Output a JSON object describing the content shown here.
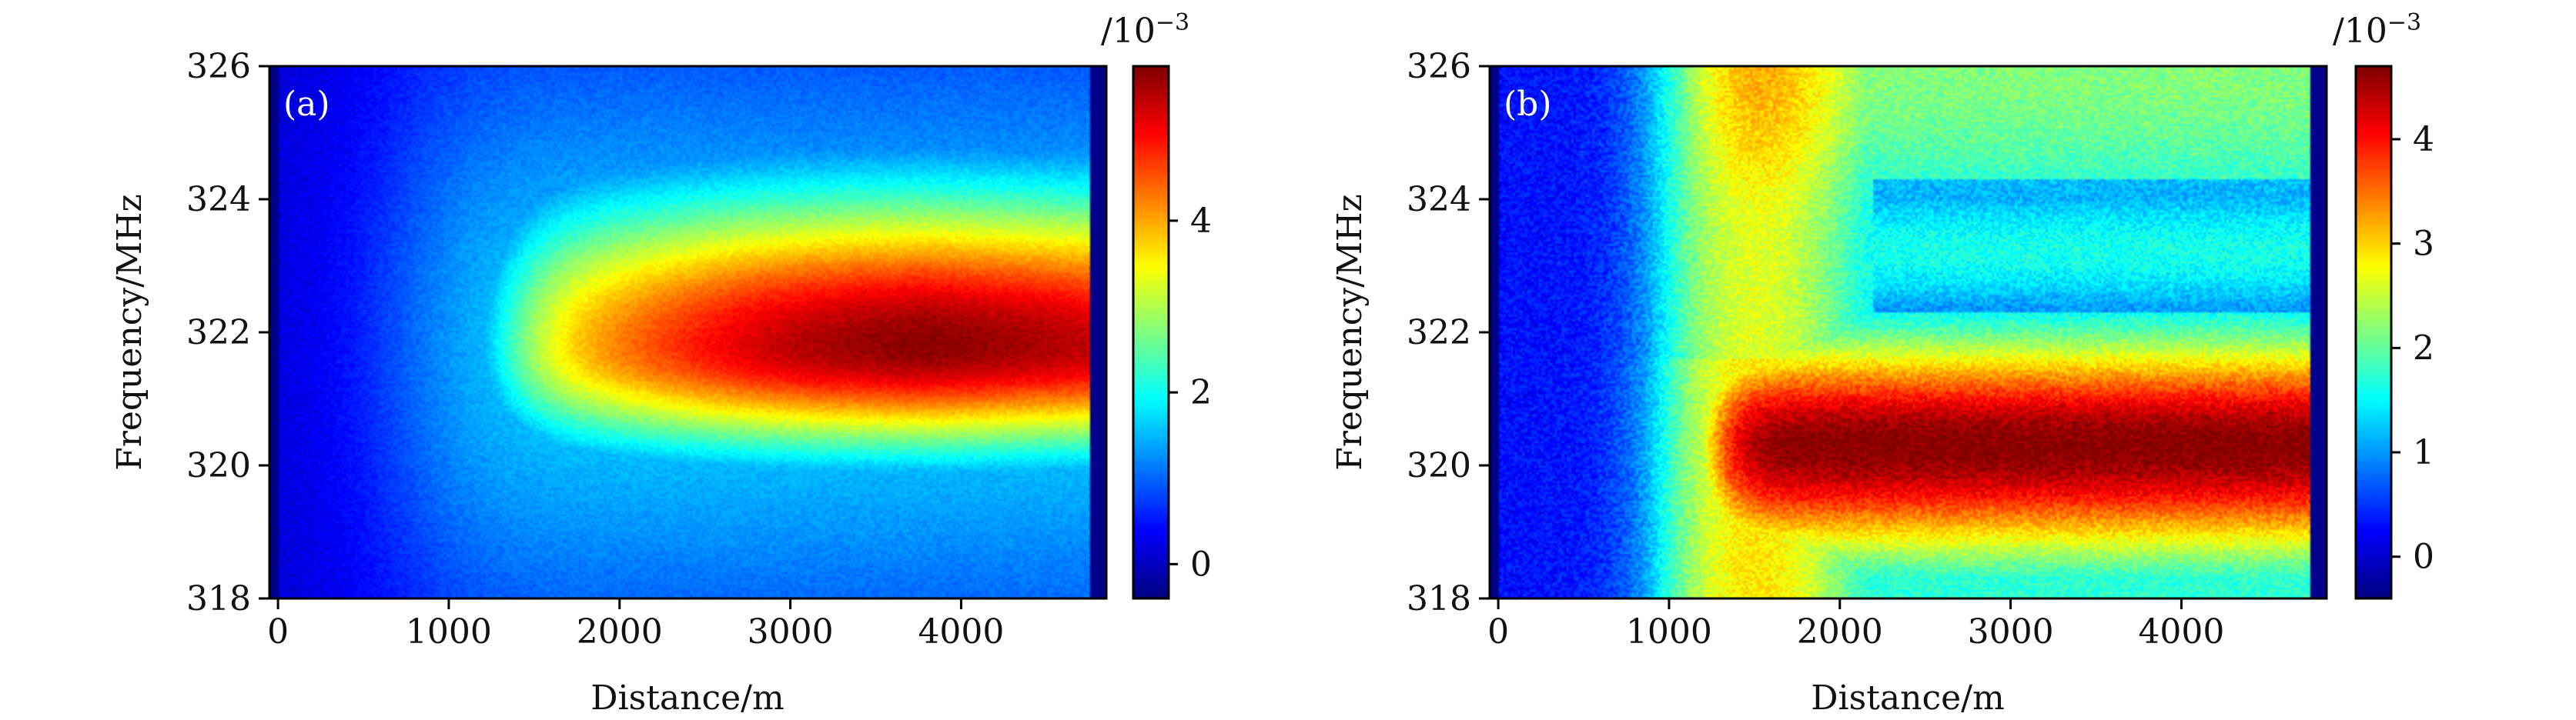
{
  "chart_data": [
    {
      "type": "heatmap",
      "panel_label": "(a)",
      "xlabel": "Distance/m",
      "ylabel": "Frequency/MHz",
      "xlim": [
        -50,
        4850
      ],
      "ylim": [
        318,
        326
      ],
      "xticks": [
        0,
        1000,
        2000,
        3000,
        4000
      ],
      "xtick_labels": [
        "0",
        "1000",
        "2000",
        "3000",
        "4000"
      ],
      "yticks": [
        318,
        320,
        322,
        324,
        326
      ],
      "ytick_labels": [
        "318",
        "320",
        "322",
        "324",
        "326"
      ],
      "colorbar": {
        "unit_label": "/10",
        "unit_exponent": "−3",
        "range": [
          -0.4,
          5.8
        ],
        "ticks": [
          0,
          2,
          4
        ],
        "tick_labels": [
          "0",
          "2",
          "4"
        ],
        "colormap": "jet"
      },
      "field": {
        "description_of_values": "amplitude x 10^-3",
        "peak_frequency": 321.8,
        "peak_value": 5.6,
        "background_value": 0.1,
        "onset_distance": 1300,
        "peak_distance": 3800,
        "width_lower": 1.1,
        "width_upper": 1.6,
        "left_ring_distance": 1200
      },
      "colors": {
        "colormap": "jet"
      }
    },
    {
      "type": "heatmap",
      "panel_label": "(b)",
      "xlabel": "Distance/m",
      "ylabel": "Frequency/MHz",
      "xlim": [
        -50,
        4850
      ],
      "ylim": [
        318,
        326
      ],
      "xticks": [
        0,
        1000,
        2000,
        3000,
        4000
      ],
      "xtick_labels": [
        "0",
        "1000",
        "2000",
        "3000",
        "4000"
      ],
      "yticks": [
        318,
        320,
        322,
        324,
        326
      ],
      "ytick_labels": [
        "318",
        "320",
        "322",
        "324",
        "326"
      ],
      "colorbar": {
        "unit_label": "/10",
        "unit_exponent": "−3",
        "range": [
          -0.4,
          4.7
        ],
        "ticks": [
          0,
          1,
          2,
          3,
          4
        ],
        "tick_labels": [
          "0",
          "1",
          "2",
          "3",
          "4"
        ],
        "colormap": "jet"
      },
      "field": {
        "description_of_values": "amplitude x 10^-3",
        "peak_frequency": 320.3,
        "peak_value": 4.4,
        "background_value": 0.3,
        "onset_distance": 1200,
        "upper_band_frequency": 323.2,
        "upper_band_value": 1.3,
        "wall_distance": 1500,
        "wall_value": 2.6
      },
      "colors": {
        "colormap": "jet"
      }
    }
  ]
}
